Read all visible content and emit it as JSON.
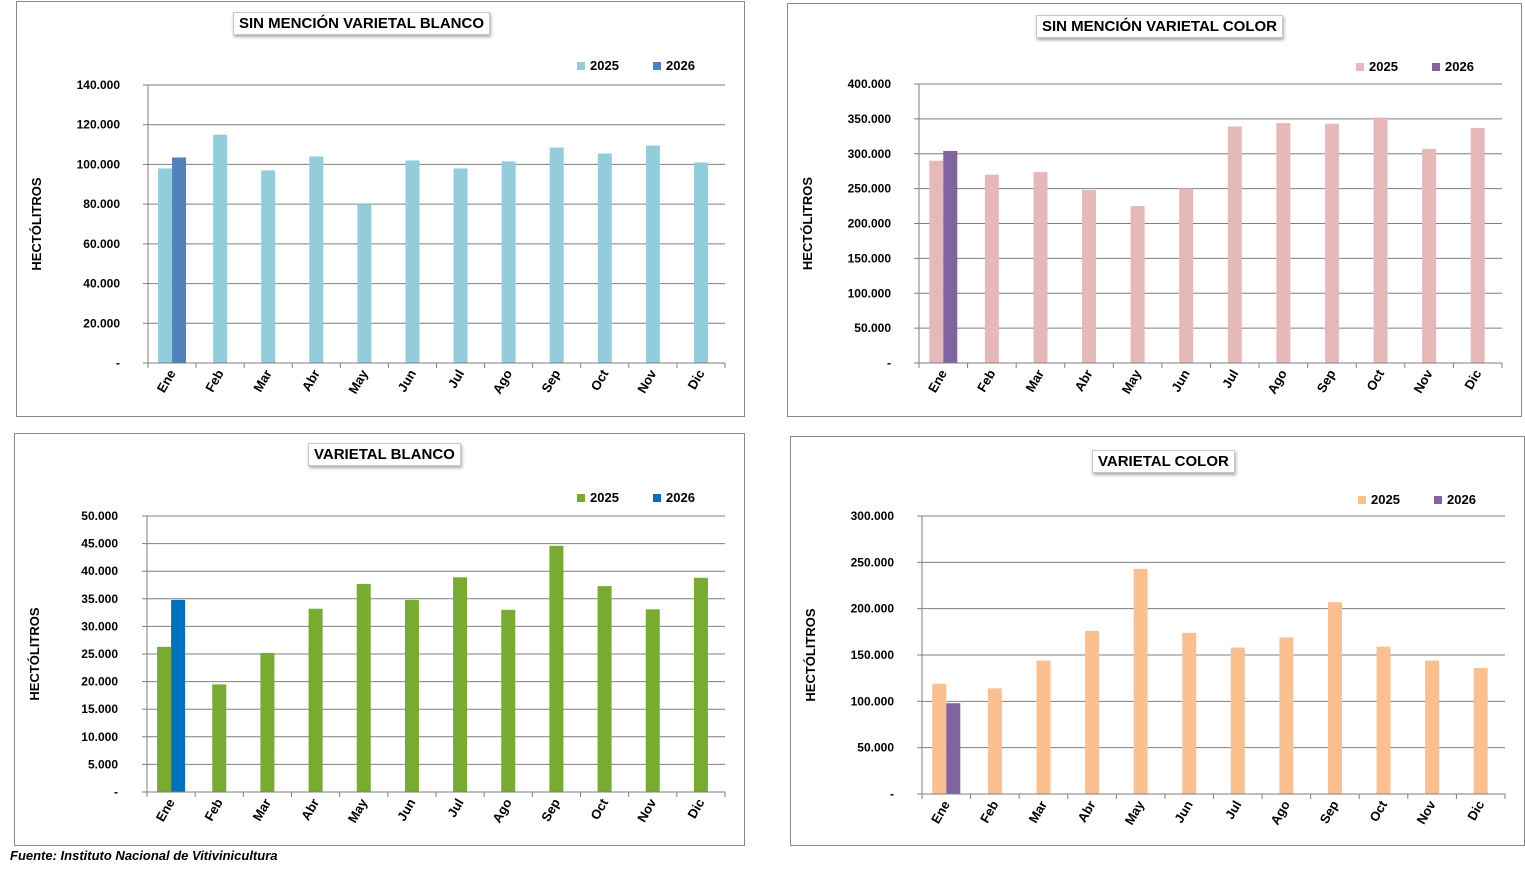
{
  "source": "Fuente: Instituto Nacional de Vitivinicultura",
  "chart_data": [
    {
      "type": "bar",
      "title": "SIN MENCIÓN VARIETAL BLANCO",
      "ylabel": "HECTÓLITROS",
      "xlabel": "",
      "ylim": [
        0,
        140000
      ],
      "ytick_values": [
        0,
        20000,
        40000,
        60000,
        80000,
        100000,
        120000,
        140000
      ],
      "ytick_labels": [
        "-",
        "20.000",
        "40.000",
        "60.000",
        "80.000",
        "100.000",
        "120.000",
        "140.000"
      ],
      "categories": [
        "Ene",
        "Feb",
        "Mar",
        "Abr",
        "May",
        "Jun",
        "Jul",
        "Ago",
        "Sep",
        "Oct",
        "Nov",
        "Dic"
      ],
      "grid": true,
      "legend_position": "top-right",
      "series": [
        {
          "name": "2025",
          "color": "#92cddc",
          "values": [
            98000,
            115000,
            97000,
            104000,
            80000,
            102000,
            98000,
            101500,
            108500,
            105500,
            109500,
            101000
          ]
        },
        {
          "name": "2026",
          "color": "#4f81bd",
          "values": [
            103500,
            null,
            null,
            null,
            null,
            null,
            null,
            null,
            null,
            null,
            null,
            null
          ]
        }
      ]
    },
    {
      "type": "bar",
      "title": "SIN MENCIÓN VARIETAL COLOR",
      "ylabel": "HECTÓLITROS",
      "xlabel": "",
      "ylim": [
        0,
        400000
      ],
      "ytick_values": [
        0,
        50000,
        100000,
        150000,
        200000,
        250000,
        300000,
        350000,
        400000
      ],
      "ytick_labels": [
        "-",
        "50.000",
        "100.000",
        "150.000",
        "200.000",
        "250.000",
        "300.000",
        "350.000",
        "400.000"
      ],
      "categories": [
        "Ene",
        "Feb",
        "Mar",
        "Abr",
        "May",
        "Jun",
        "Jul",
        "Ago",
        "Sep",
        "Oct",
        "Nov",
        "Dic"
      ],
      "grid": true,
      "legend_position": "top-right",
      "series": [
        {
          "name": "2025",
          "color": "#e6b9b8",
          "values": [
            290000,
            270000,
            274000,
            248000,
            225000,
            250000,
            339000,
            344000,
            343000,
            352000,
            307000,
            337000
          ]
        },
        {
          "name": "2026",
          "color": "#8064a2",
          "values": [
            304000,
            null,
            null,
            null,
            null,
            null,
            null,
            null,
            null,
            null,
            null,
            null
          ]
        }
      ]
    },
    {
      "type": "bar",
      "title": "VARIETAL BLANCO",
      "ylabel": "HECTÓLITROS",
      "xlabel": "",
      "ylim": [
        0,
        50000
      ],
      "ytick_values": [
        0,
        5000,
        10000,
        15000,
        20000,
        25000,
        30000,
        35000,
        40000,
        45000,
        50000
      ],
      "ytick_labels": [
        "-",
        "5.000",
        "10.000",
        "15.000",
        "20.000",
        "25.000",
        "30.000",
        "35.000",
        "40.000",
        "45.000",
        "50.000"
      ],
      "categories": [
        "Ene",
        "Feb",
        "Mar",
        "Abr",
        "May",
        "Jun",
        "Jul",
        "Ago",
        "Sep",
        "Oct",
        "Nov",
        "Dic"
      ],
      "grid": true,
      "legend_position": "top-right",
      "series": [
        {
          "name": "2025",
          "color": "#77ac30",
          "values": [
            26300,
            19500,
            25200,
            33200,
            37700,
            34800,
            38900,
            33000,
            44600,
            37300,
            33100,
            38800
          ]
        },
        {
          "name": "2026",
          "color": "#0070c0",
          "values": [
            34800,
            null,
            null,
            null,
            null,
            null,
            null,
            null,
            null,
            null,
            null,
            null
          ]
        }
      ]
    },
    {
      "type": "bar",
      "title": "VARIETAL COLOR",
      "ylabel": "HECTÓLITROS",
      "xlabel": "",
      "ylim": [
        0,
        300000
      ],
      "ytick_values": [
        0,
        50000,
        100000,
        150000,
        200000,
        250000,
        300000
      ],
      "ytick_labels": [
        "-",
        "50.000",
        "100.000",
        "150.000",
        "200.000",
        "250.000",
        "300.000"
      ],
      "categories": [
        "Ene",
        "Feb",
        "Mar",
        "Abr",
        "May",
        "Jun",
        "Jul",
        "Ago",
        "Sep",
        "Oct",
        "Nov",
        "Dic"
      ],
      "grid": true,
      "legend_position": "top-right",
      "series": [
        {
          "name": "2025",
          "color": "#fac090",
          "values": [
            119000,
            114000,
            144000,
            176000,
            243000,
            174000,
            158000,
            169000,
            207000,
            159000,
            144000,
            136000
          ]
        },
        {
          "name": "2026",
          "color": "#8064a2",
          "values": [
            98000,
            null,
            null,
            null,
            null,
            null,
            null,
            null,
            null,
            null,
            null,
            null
          ]
        }
      ]
    }
  ]
}
